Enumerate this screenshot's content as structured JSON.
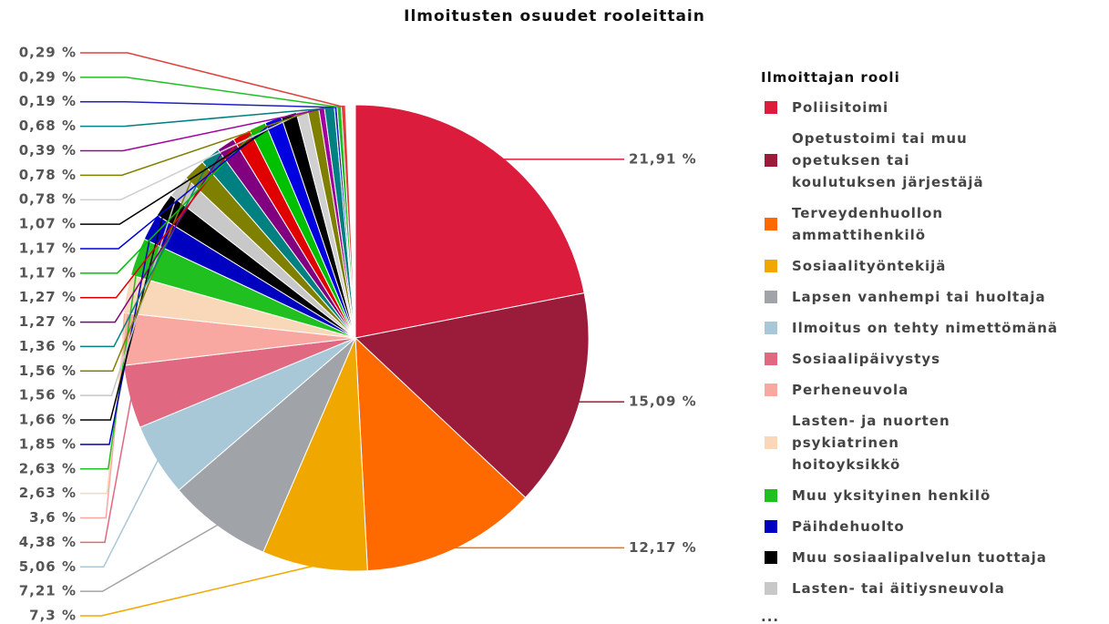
{
  "chart_data": {
    "type": "pie",
    "title": "Ilmoitusten osuudet rooleittain",
    "legend_title": "Ilmoittajan rooli",
    "legend_more": "...",
    "legend": "right",
    "categories": [
      "Poliisitoimi",
      "Opetustoimi tai muu opetuksen tai koulutuksen järjestäjä",
      "Terveydenhuollon ammattihenkilö",
      "Sosiaalityöntekijä",
      "Lapsen vanhempi tai huoltaja",
      "Ilmoitus on tehty nimettömänä",
      "Sosiaalipäivystys",
      "Perheneuvola",
      "Lasten- ja nuorten psykiatrinen hoitoyksikkö",
      "Muu yksityinen henkilö",
      "Päihdehuolto",
      "Muu sosiaalipalvelun tuottaja",
      "Lasten- tai äitiysneuvola",
      null,
      null,
      null,
      null,
      null,
      null,
      null,
      null,
      null,
      null,
      null,
      null,
      null,
      null
    ],
    "values": [
      21.91,
      15.09,
      12.17,
      7.3,
      7.21,
      5.06,
      4.38,
      3.6,
      2.63,
      2.63,
      1.85,
      1.66,
      1.56,
      1.56,
      1.36,
      1.27,
      1.27,
      1.17,
      1.17,
      1.07,
      0.78,
      0.78,
      0.39,
      0.68,
      0.19,
      0.29,
      0.29
    ],
    "value_labels": [
      "21,91 %",
      "15,09 %",
      "12,17 %",
      "7,3 %",
      "7,21 %",
      "5,06 %",
      "4,38 %",
      "3,6 %",
      "2,63 %",
      "2,63 %",
      "1,85 %",
      "1,66 %",
      "1,56 %",
      "1,56 %",
      "1,36 %",
      "1,27 %",
      "1,27 %",
      "1,17 %",
      "1,17 %",
      "1,07 %",
      "0,78 %",
      "0,78 %",
      "0,39 %",
      "0,68 %",
      "0,19 %",
      "0,29 %",
      "0,29 %"
    ],
    "colors": [
      "#dc1c3c",
      "#9b1b3a",
      "#ff6a00",
      "#f0a800",
      "#a0a4a8",
      "#a8c8d8",
      "#e06880",
      "#f8a8a0",
      "#f8d8b8",
      "#20c020",
      "#0000c0",
      "#000000",
      "#c8c8c8",
      "#808000",
      "#008080",
      "#800080",
      "#e00000",
      "#00c000",
      "#0000e0",
      "#000000",
      "#d0d0d0",
      "#808000",
      "#a000a0",
      "#008080",
      "#2020c0",
      "#20c020",
      "#e04040"
    ]
  }
}
